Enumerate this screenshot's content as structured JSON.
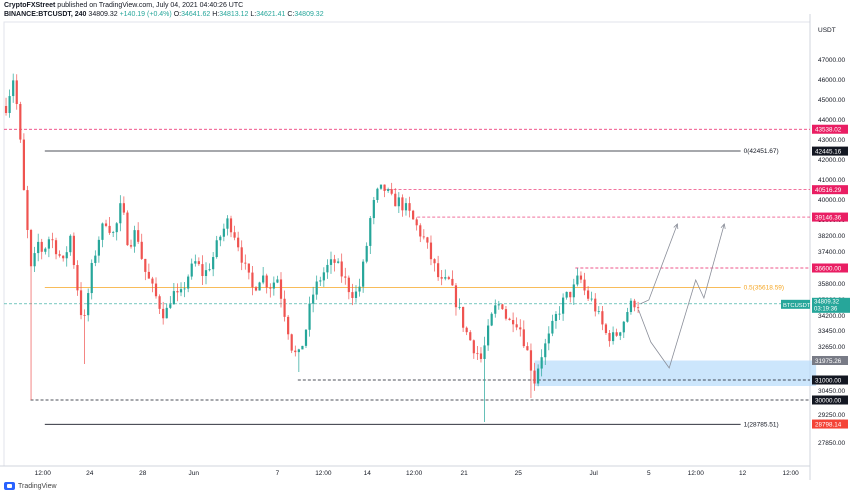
{
  "header": {
    "publisher": "CryptoFXStreet",
    "published_text": "published on TradingView.com, July 04, 2021 04:40:26 UTC",
    "symbol": "BINANCE:BTCUSDT, 240",
    "last": "34809.32",
    "change": "+140.19 (+0.4%)",
    "o_label": "O:",
    "o": "34641.62",
    "h_label": "H:",
    "h": "34813.12",
    "l_label": "L:",
    "l": "34621.41",
    "c_label": "C:",
    "c": "34809.32"
  },
  "footer": {
    "brand": "TradingView"
  },
  "colors": {
    "up": "#26a69a",
    "down": "#ef5350",
    "fib": "#f5a623",
    "resistance": "#e91e63",
    "zone": "#bbdefb"
  },
  "chart_data": {
    "type": "candlestick",
    "currency_label": "USDT",
    "ylim": [
      26700,
      48900
    ],
    "xlim": [
      0,
      790
    ],
    "y_ticks": [
      47000,
      46000,
      45000,
      44000,
      43000,
      42000,
      41000,
      40000,
      39000,
      38200,
      37400,
      36600,
      35800,
      35000,
      34200,
      33450,
      32650,
      31850,
      31050,
      30450,
      30050,
      29250,
      28890,
      27850
    ],
    "y_tick_labels": [
      "47000.00",
      "46000.00",
      "45000.00",
      "44000.00",
      "43000.00",
      "42000.00",
      "41000.00",
      "40000.00",
      "39000.00",
      "38200.00",
      "37400.00",
      "36600.00",
      "35800.00",
      "35000.00",
      "34200.00",
      "33450.00",
      "32650.00",
      "31850.00",
      "31050.00",
      "30450.00",
      "30050.00",
      "29250.00",
      "28890.00",
      "27850.00"
    ],
    "x_ticks": [
      {
        "t": 38,
        "label": "12:00"
      },
      {
        "t": 84,
        "label": "24"
      },
      {
        "t": 136,
        "label": "28"
      },
      {
        "t": 186,
        "label": "Jun"
      },
      {
        "t": 268,
        "label": "7"
      },
      {
        "t": 313,
        "label": "12:00"
      },
      {
        "t": 356,
        "label": "14"
      },
      {
        "t": 402,
        "label": "12:00"
      },
      {
        "t": 451,
        "label": "21"
      },
      {
        "t": 504,
        "label": "25"
      },
      {
        "t": 578,
        "label": "Jul"
      },
      {
        "t": 632,
        "label": "5"
      },
      {
        "t": 678,
        "label": "12:00"
      },
      {
        "t": 724,
        "label": "12"
      },
      {
        "t": 771,
        "label": "12:00"
      }
    ],
    "price_levels": [
      {
        "value": 43538.02,
        "label": "43538.02",
        "style": "resistance"
      },
      {
        "value": 42445.16,
        "label": "42445.16",
        "style": "black"
      },
      {
        "value": 40516.29,
        "label": "40516.29",
        "style": "resistance"
      },
      {
        "value": 39146.36,
        "label": "39146.36",
        "style": "resistance"
      },
      {
        "value": 36600.0,
        "label": "36600.00",
        "style": "resistance"
      },
      {
        "value": 34809.32,
        "label": "34809.32",
        "style": "current",
        "symbol": "BTCUSDT",
        "countdown": "03:19:36"
      },
      {
        "value": 31975.26,
        "label": "31975.26",
        "style": "gray"
      },
      {
        "value": 31000.0,
        "label": "31000.00",
        "style": "dark"
      },
      {
        "value": 30000.0,
        "label": "30000.00",
        "style": "dark"
      },
      {
        "value": 28798.14,
        "label": "28798.14",
        "style": "sell"
      }
    ],
    "lines": [
      {
        "kind": "fib",
        "value": 42451.67,
        "t_start": 40,
        "t_end": 722,
        "label": "0(42451.67)",
        "color": "#131722",
        "dash": false
      },
      {
        "kind": "fib",
        "value": 35618.59,
        "t_start": 40,
        "t_end": 722,
        "label": "0.5(35618.59)",
        "color": "#f5a623",
        "dash": false
      },
      {
        "kind": "fib",
        "value": 28785.51,
        "t_start": 40,
        "t_end": 722,
        "label": "1(28785.51)",
        "color": "#131722",
        "dash": false
      },
      {
        "kind": "level",
        "value": 43538.02,
        "t_start": 0,
        "t_end": 790,
        "label": "",
        "color": "#e91e63",
        "dash": true
      },
      {
        "kind": "level",
        "value": 40516.29,
        "t_start": 372,
        "t_end": 790,
        "label": "",
        "color": "#e91e63",
        "dash": true
      },
      {
        "kind": "level",
        "value": 39146.36,
        "t_start": 405,
        "t_end": 790,
        "label": "",
        "color": "#e91e63",
        "dash": true
      },
      {
        "kind": "level",
        "value": 36600.0,
        "t_start": 560,
        "t_end": 790,
        "label": "",
        "color": "#e91e63",
        "dash": true
      },
      {
        "kind": "level",
        "value": 31000.0,
        "t_start": 288,
        "t_end": 790,
        "label": "",
        "color": "#131722",
        "dash": true
      },
      {
        "kind": "level",
        "value": 30000.0,
        "t_start": 26,
        "t_end": 790,
        "label": "",
        "color": "#131722",
        "dash": true
      },
      {
        "kind": "level",
        "value": 34809.32,
        "t_start": 0,
        "t_end": 790,
        "label": "",
        "color": "#26a69a",
        "dash": true
      }
    ],
    "zone": {
      "t_start": 520,
      "t_end": 796,
      "top": 31975.26,
      "bottom": 30700
    },
    "projections": [
      [
        {
          "t": 624,
          "y": 34809
        },
        {
          "t": 632,
          "y": 35000
        },
        {
          "t": 660,
          "y": 38800
        }
      ],
      [
        {
          "t": 622,
          "y": 34500
        },
        {
          "t": 634,
          "y": 32900
        },
        {
          "t": 652,
          "y": 31600
        },
        {
          "t": 678,
          "y": 36000
        },
        {
          "t": 686,
          "y": 35100
        },
        {
          "t": 706,
          "y": 38800
        }
      ]
    ],
    "waypoints": [
      {
        "t": 2,
        "p": 44700
      },
      {
        "t": 9,
        "p": 46100
      },
      {
        "t": 14,
        "p": 44200
      },
      {
        "t": 20,
        "p": 40000
      },
      {
        "t": 27,
        "p": 36200
      },
      {
        "t": 33,
        "p": 37900
      },
      {
        "t": 38,
        "p": 37400
      },
      {
        "t": 45,
        "p": 38200
      },
      {
        "t": 52,
        "p": 37500
      },
      {
        "t": 58,
        "p": 36800
      },
      {
        "t": 65,
        "p": 38200
      },
      {
        "t": 72,
        "p": 35600
      },
      {
        "t": 78,
        "p": 33600
      },
      {
        "t": 85,
        "p": 36300
      },
      {
        "t": 92,
        "p": 38000
      },
      {
        "t": 100,
        "p": 39000
      },
      {
        "t": 108,
        "p": 38200
      },
      {
        "t": 115,
        "p": 39800
      },
      {
        "t": 122,
        "p": 37800
      },
      {
        "t": 130,
        "p": 38500
      },
      {
        "t": 137,
        "p": 36600
      },
      {
        "t": 145,
        "p": 35600
      },
      {
        "t": 152,
        "p": 34800
      },
      {
        "t": 158,
        "p": 34200
      },
      {
        "t": 165,
        "p": 35400
      },
      {
        "t": 172,
        "p": 35000
      },
      {
        "t": 180,
        "p": 36200
      },
      {
        "t": 188,
        "p": 36900
      },
      {
        "t": 196,
        "p": 36200
      },
      {
        "t": 204,
        "p": 37000
      },
      {
        "t": 212,
        "p": 38200
      },
      {
        "t": 220,
        "p": 39000
      },
      {
        "t": 228,
        "p": 38100
      },
      {
        "t": 236,
        "p": 36600
      },
      {
        "t": 244,
        "p": 35500
      },
      {
        "t": 252,
        "p": 36300
      },
      {
        "t": 260,
        "p": 35700
      },
      {
        "t": 268,
        "p": 36100
      },
      {
        "t": 275,
        "p": 34400
      },
      {
        "t": 282,
        "p": 32700
      },
      {
        "t": 288,
        "p": 32000
      },
      {
        "t": 295,
        "p": 33300
      },
      {
        "t": 302,
        "p": 35200
      },
      {
        "t": 309,
        "p": 36000
      },
      {
        "t": 316,
        "p": 36600
      },
      {
        "t": 324,
        "p": 36900
      },
      {
        "t": 332,
        "p": 36200
      },
      {
        "t": 340,
        "p": 35400
      },
      {
        "t": 347,
        "p": 35300
      },
      {
        "t": 354,
        "p": 37200
      },
      {
        "t": 360,
        "p": 39400
      },
      {
        "t": 366,
        "p": 40300
      },
      {
        "t": 372,
        "p": 40600
      },
      {
        "t": 380,
        "p": 40000
      },
      {
        "t": 388,
        "p": 39900
      },
      {
        "t": 396,
        "p": 39400
      },
      {
        "t": 404,
        "p": 38700
      },
      {
        "t": 412,
        "p": 38000
      },
      {
        "t": 420,
        "p": 36900
      },
      {
        "t": 428,
        "p": 35800
      },
      {
        "t": 436,
        "p": 35900
      },
      {
        "t": 444,
        "p": 34800
      },
      {
        "t": 452,
        "p": 33500
      },
      {
        "t": 460,
        "p": 32700
      },
      {
        "t": 468,
        "p": 32000
      },
      {
        "t": 474,
        "p": 33300
      },
      {
        "t": 480,
        "p": 34500
      },
      {
        "t": 488,
        "p": 34900
      },
      {
        "t": 494,
        "p": 33800
      },
      {
        "t": 500,
        "p": 34200
      },
      {
        "t": 507,
        "p": 33500
      },
      {
        "t": 514,
        "p": 32200
      },
      {
        "t": 520,
        "p": 31000
      },
      {
        "t": 526,
        "p": 32200
      },
      {
        "t": 534,
        "p": 33100
      },
      {
        "t": 542,
        "p": 34300
      },
      {
        "t": 550,
        "p": 35100
      },
      {
        "t": 558,
        "p": 35500
      },
      {
        "t": 564,
        "p": 36200
      },
      {
        "t": 570,
        "p": 35300
      },
      {
        "t": 578,
        "p": 34800
      },
      {
        "t": 584,
        "p": 34000
      },
      {
        "t": 590,
        "p": 33300
      },
      {
        "t": 598,
        "p": 33100
      },
      {
        "t": 606,
        "p": 33800
      },
      {
        "t": 612,
        "p": 34600
      },
      {
        "t": 618,
        "p": 34900
      },
      {
        "t": 622,
        "p": 34809
      }
    ],
    "spikes": [
      {
        "t": 26,
        "low": 30000
      },
      {
        "t": 80,
        "low": 31800
      },
      {
        "t": 288,
        "low": 31400
      },
      {
        "t": 470,
        "low": 28900
      },
      {
        "t": 518,
        "low": 30100
      }
    ],
    "candle_step": 3.5
  }
}
